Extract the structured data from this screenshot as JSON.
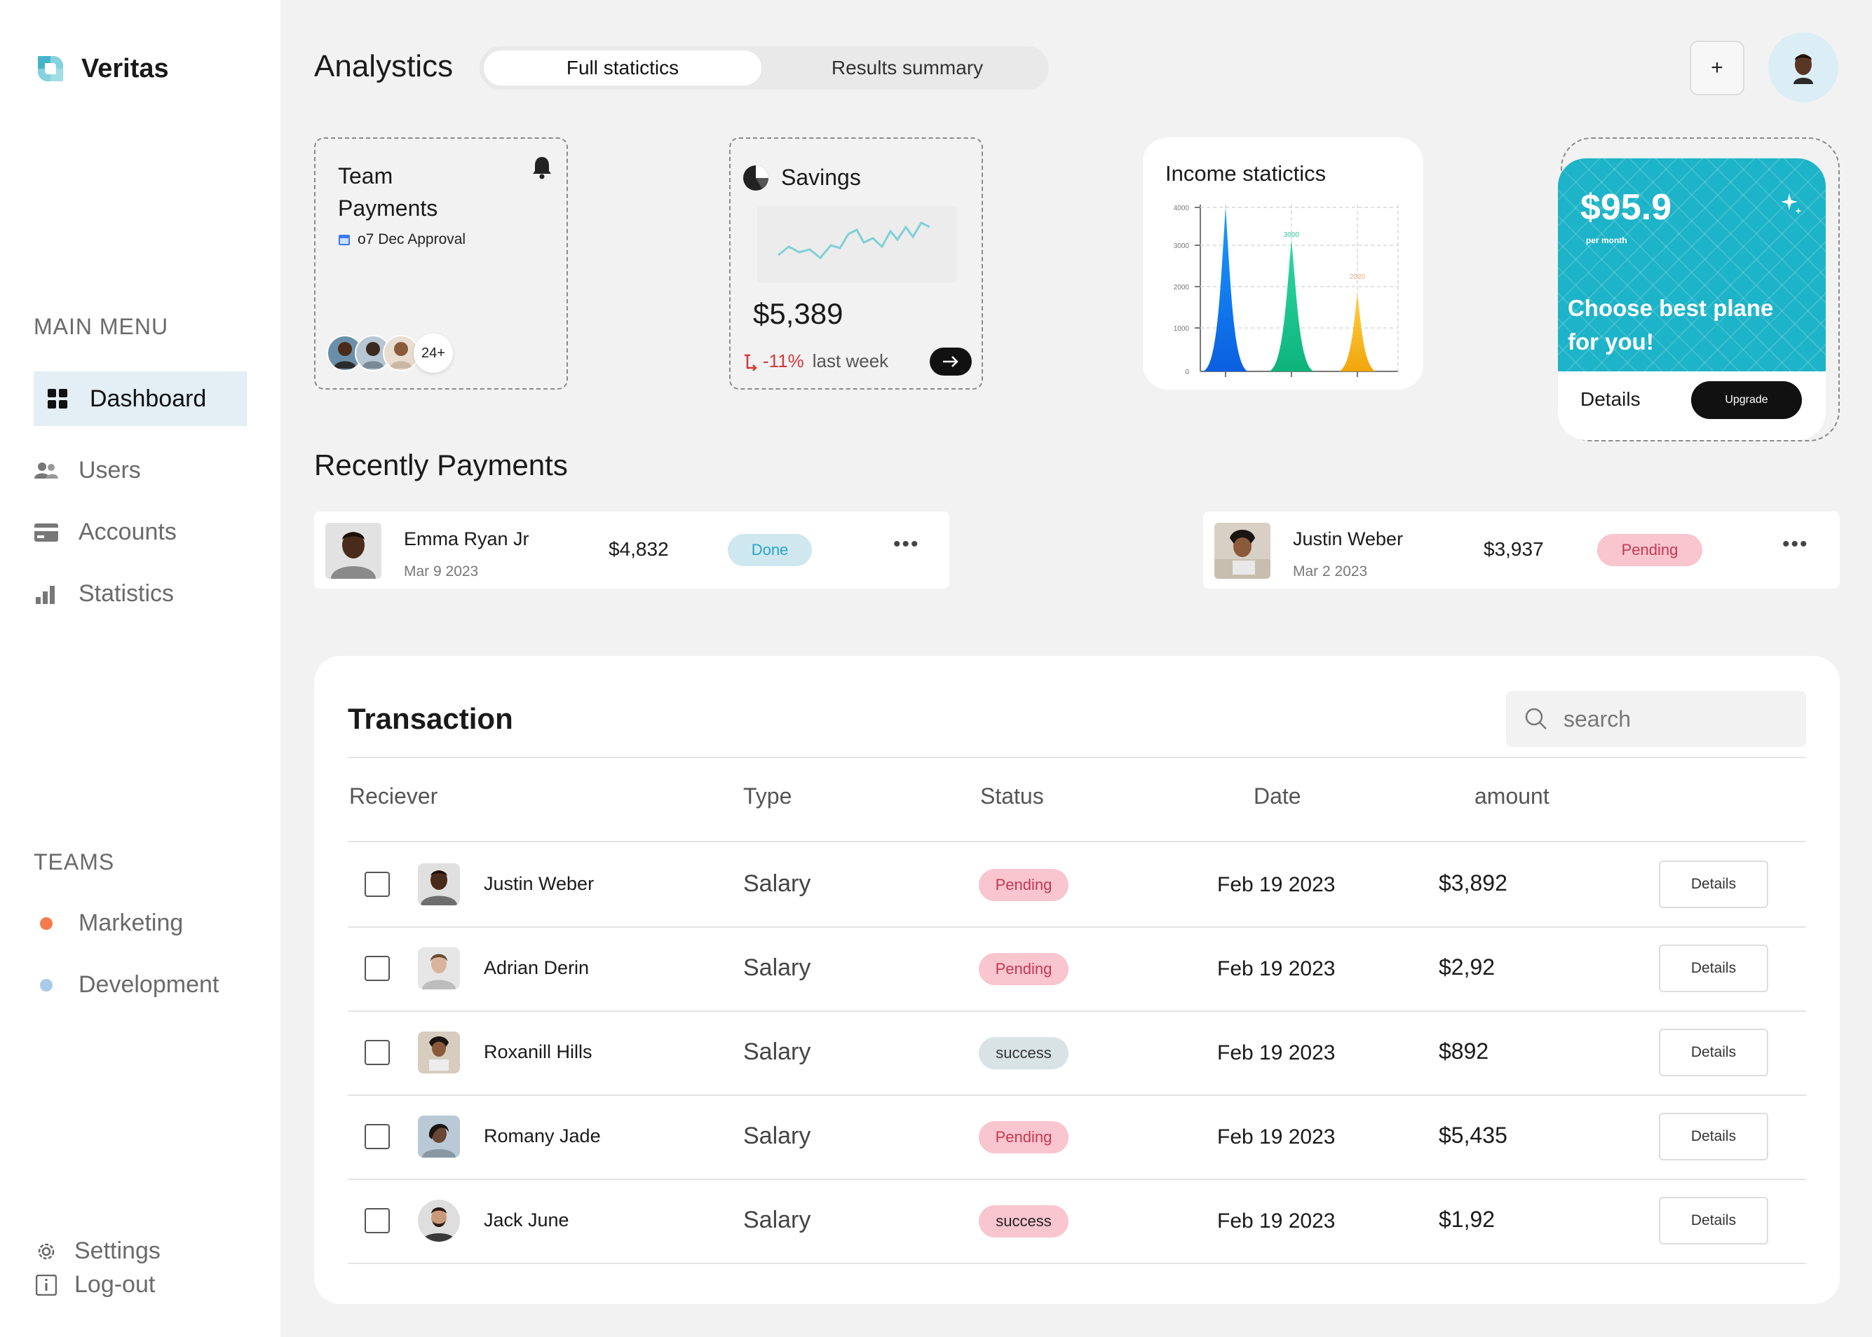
{
  "app": {
    "name": "Veritas"
  },
  "sidebar": {
    "main_menu_title": "MAIN MENU",
    "items": [
      {
        "label": "Dashboard",
        "icon": "grid-icon",
        "active": true
      },
      {
        "label": "Users",
        "icon": "users-icon"
      },
      {
        "label": "Accounts",
        "icon": "card-icon"
      },
      {
        "label": "Statistics",
        "icon": "bar-chart-icon"
      }
    ],
    "teams_title": "TEAMS",
    "teams": [
      {
        "label": "Marketing",
        "color": "#f47b4e"
      },
      {
        "label": "Development",
        "color": "#a9cbe8"
      }
    ],
    "settings_label": "Settings",
    "logout_label": "Log-out"
  },
  "header": {
    "title": "Analystics",
    "tabs": [
      {
        "label": "Full staticti​cs",
        "active": true
      },
      {
        "label": "Results summary",
        "active": false
      }
    ],
    "add_label": "+"
  },
  "cards": {
    "team_payments": {
      "title_line1": "Team",
      "title_line2": "Payments",
      "approval": "o7 Dec Approval",
      "count": "24+"
    },
    "savings": {
      "title": "Savings",
      "amount": "$5,389",
      "change": "-11%",
      "change_suffix": "last week"
    },
    "income": {
      "title": "Income staticti​cs",
      "y_ticks": [
        "4000",
        "3000",
        "2000",
        "1000",
        "0"
      ],
      "peak_labels": [
        "3000",
        "2020"
      ]
    },
    "plan": {
      "price": "$95.9",
      "per": "per month",
      "headline_line1": "Choose best plane",
      "headline_line2": "for you!",
      "details_label": "Details",
      "upgrade_label": "Upgrade"
    }
  },
  "recent": {
    "title": "Recently Payments",
    "payments": [
      {
        "name": "Emma Ryan Jr",
        "date": "Mar 9 2023",
        "amount": "$4,832",
        "status": "Done"
      },
      {
        "name": "Justin Weber",
        "date": "Mar 2 2023",
        "amount": "$3,937",
        "status": "Pending"
      }
    ]
  },
  "transactions": {
    "title": "Transaction",
    "search_placeholder": "search",
    "columns": [
      "Reciever",
      "Type",
      "Status",
      "Date",
      "amount"
    ],
    "details_label": "Details",
    "rows": [
      {
        "name": "Justin Weber",
        "type": "Salary",
        "status": "Pending",
        "date": "Feb 19 2023",
        "amount": "$3,892"
      },
      {
        "name": "Adrian Derin",
        "type": "Salary",
        "status": "Pending",
        "date": "Feb 19 2023",
        "amount": "$2,92"
      },
      {
        "name": "Roxanill Hills",
        "type": "Salary",
        "status": "success",
        "date": "Feb 19 2023",
        "amount": "$892"
      },
      {
        "name": "Romany Jade",
        "type": "Salary",
        "status": "Pending",
        "date": "Feb 19 2023",
        "amount": "$5,435"
      },
      {
        "name": "Jack June",
        "type": "Salary",
        "status": "success",
        "date": "Feb 19 2023",
        "amount": "$1,92"
      }
    ]
  }
}
